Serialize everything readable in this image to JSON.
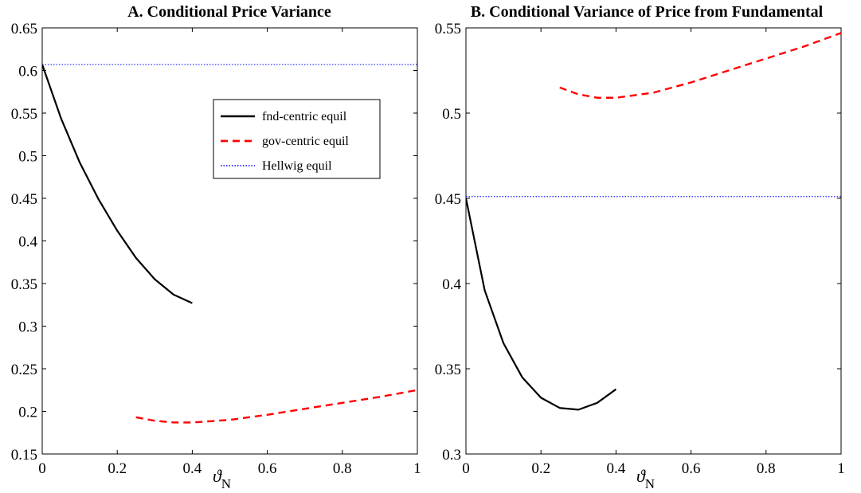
{
  "chart_data": [
    {
      "type": "line",
      "title": "A. Conditional Price Variance",
      "xlabel": "ϑ",
      "xlabel_subscript": "N",
      "ylabel": "",
      "xlim": [
        0,
        1
      ],
      "ylim": [
        0.15,
        0.65
      ],
      "xticks": [
        0,
        0.2,
        0.4,
        0.6,
        0.8,
        1
      ],
      "xtick_labels": [
        "0",
        "0.2",
        "0.4",
        "0.6",
        "0.8",
        "1"
      ],
      "yticks": [
        0.15,
        0.2,
        0.25,
        0.3,
        0.35,
        0.4,
        0.45,
        0.5,
        0.55,
        0.6,
        0.65
      ],
      "ytick_labels": [
        "0.15",
        "0.2",
        "0.25",
        "0.3",
        "0.35",
        "0.4",
        "0.45",
        "0.5",
        "0.55",
        "0.6",
        "0.65"
      ],
      "grid": false,
      "legend_position": "upper-right",
      "series": [
        {
          "name": "fnd-centric equil",
          "style": "solid",
          "color": "#000000",
          "x": [
            0,
            0.05,
            0.1,
            0.15,
            0.2,
            0.25,
            0.3,
            0.35,
            0.4
          ],
          "y": [
            0.607,
            0.544,
            0.492,
            0.449,
            0.412,
            0.38,
            0.355,
            0.337,
            0.327
          ]
        },
        {
          "name": "gov-centric equil",
          "style": "dashed",
          "color": "#ff0000",
          "x": [
            0.25,
            0.3,
            0.35,
            0.4,
            0.5,
            0.6,
            0.7,
            0.8,
            0.9,
            1.0
          ],
          "y": [
            0.193,
            0.189,
            0.187,
            0.187,
            0.19,
            0.196,
            0.203,
            0.21,
            0.217,
            0.225
          ]
        },
        {
          "name": "Hellwig equil",
          "style": "dotted",
          "color": "#0000ff",
          "x": [
            0,
            1
          ],
          "y": [
            0.607,
            0.607
          ]
        }
      ]
    },
    {
      "type": "line",
      "title": "B. Conditional Variance of Price from Fundamental",
      "xlabel": "ϑ",
      "xlabel_subscript": "N",
      "ylabel": "",
      "xlim": [
        0,
        1
      ],
      "ylim": [
        0.3,
        0.55
      ],
      "xticks": [
        0,
        0.2,
        0.4,
        0.6,
        0.8,
        1
      ],
      "xtick_labels": [
        "0",
        "0.2",
        "0.4",
        "0.6",
        "0.8",
        "1"
      ],
      "yticks": [
        0.3,
        0.35,
        0.4,
        0.45,
        0.5,
        0.55
      ],
      "ytick_labels": [
        "0.3",
        "0.35",
        "0.4",
        "0.45",
        "0.5",
        "0.55"
      ],
      "grid": false,
      "series": [
        {
          "name": "fnd-centric equil",
          "style": "solid",
          "color": "#000000",
          "x": [
            0,
            0.05,
            0.1,
            0.15,
            0.2,
            0.25,
            0.3,
            0.35,
            0.4
          ],
          "y": [
            0.45,
            0.396,
            0.365,
            0.345,
            0.333,
            0.327,
            0.326,
            0.33,
            0.338
          ]
        },
        {
          "name": "gov-centric equil",
          "style": "dashed",
          "color": "#ff0000",
          "x": [
            0.25,
            0.3,
            0.35,
            0.4,
            0.5,
            0.6,
            0.7,
            0.8,
            0.9,
            1.0
          ],
          "y": [
            0.515,
            0.511,
            0.509,
            0.509,
            0.512,
            0.518,
            0.525,
            0.532,
            0.539,
            0.547
          ]
        },
        {
          "name": "Hellwig equil",
          "style": "dotted",
          "color": "#0000ff",
          "x": [
            0,
            1
          ],
          "y": [
            0.451,
            0.451
          ]
        }
      ]
    }
  ]
}
